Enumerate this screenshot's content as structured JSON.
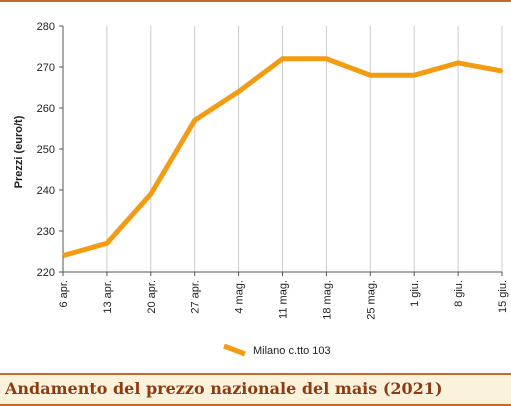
{
  "caption": "Andamento del prezzo nazionale del mais (2021)",
  "colors": {
    "line": "#f39c12",
    "frame": "#c36a2d",
    "caption_bg": "#fbf2dc",
    "caption_text": "#8c3c14",
    "grid": "#cccccc"
  },
  "chart_data": {
    "type": "line",
    "title": "",
    "xlabel": "",
    "ylabel": "Prezzi (euro/t)",
    "categories": [
      "6 apr.",
      "13 apr.",
      "20 apr.",
      "27 apr.",
      "4 mag.",
      "11 mag.",
      "18 mag.",
      "25 mag.",
      "1 giu.",
      "8 giu.",
      "15 giu."
    ],
    "ylim": [
      220,
      280
    ],
    "yticks": [
      220,
      230,
      240,
      250,
      260,
      270,
      280
    ],
    "grid": "vertical",
    "legend_position": "bottom-center",
    "series": [
      {
        "name": "Milano  c.tto 103",
        "color": "#f39c12",
        "values": [
          224,
          227,
          239,
          257,
          264,
          272,
          272,
          268,
          268,
          271,
          269
        ]
      }
    ]
  }
}
